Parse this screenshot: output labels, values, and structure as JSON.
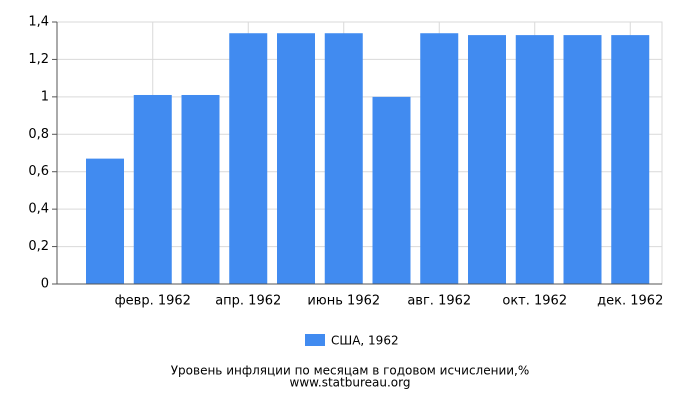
{
  "chart_data": {
    "type": "bar",
    "categories": [
      null,
      "февр. 1962",
      null,
      "апр. 1962",
      null,
      "июнь 1962",
      null,
      "авг. 1962",
      null,
      "окт. 1962",
      null,
      "дек. 1962"
    ],
    "series": [
      {
        "name": "США, 1962",
        "color": "#418bf0",
        "values": [
          0.67,
          1.01,
          1.01,
          1.34,
          1.34,
          1.34,
          1.0,
          1.34,
          1.33,
          1.33,
          1.33,
          1.33
        ]
      }
    ],
    "ylim": [
      0,
      1.4
    ],
    "yticks": [
      0,
      {
        "value": 0.2,
        "label": "0,2"
      },
      {
        "value": 0.4,
        "label": "0,4"
      },
      {
        "value": 0.6,
        "label": "0,6"
      },
      {
        "value": 0.8,
        "label": "0,8"
      },
      1,
      {
        "value": 1.2,
        "label": "1,2"
      },
      {
        "value": 1.4,
        "label": "1,4"
      }
    ],
    "grid": true,
    "footer": [
      "Уровень инфляции по месяцам в годовом исчислении,%",
      "www.statbureau.org"
    ]
  }
}
